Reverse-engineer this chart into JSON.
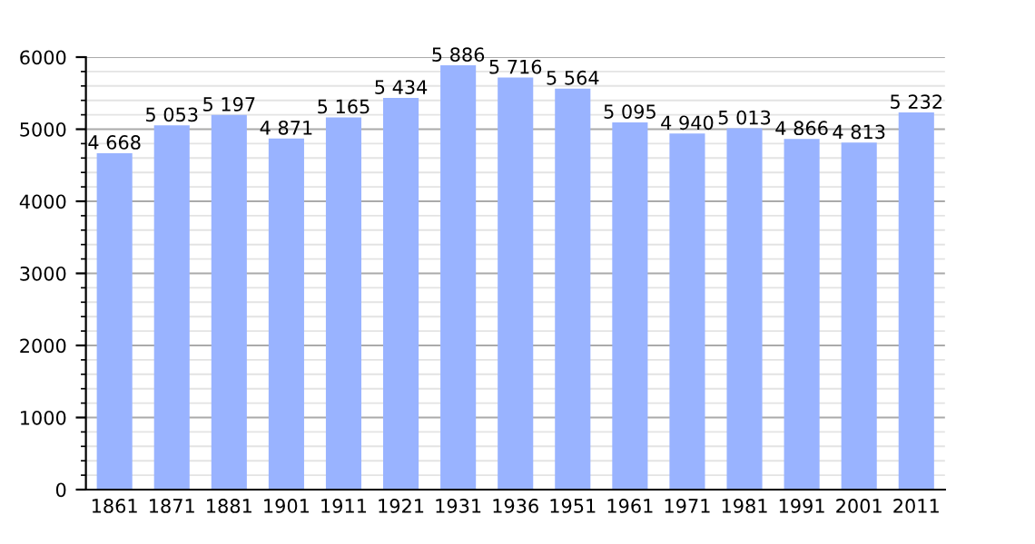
{
  "chart_data": {
    "type": "bar",
    "categories": [
      "1861",
      "1871",
      "1881",
      "1901",
      "1911",
      "1921",
      "1931",
      "1936",
      "1951",
      "1961",
      "1971",
      "1981",
      "1991",
      "2001",
      "2011"
    ],
    "values": [
      4668,
      5053,
      5197,
      4871,
      5165,
      5434,
      5886,
      5716,
      5564,
      5095,
      4940,
      5013,
      4866,
      4813,
      5232
    ],
    "value_labels": [
      "4 668",
      "5 053",
      "5 197",
      "4 871",
      "5 165",
      "5 434",
      "5 886",
      "5 716",
      "5 564",
      "5 095",
      "4 940",
      "5 013",
      "4 866",
      "4 813",
      "5 232"
    ],
    "color": "#99b3ff",
    "ylim": [
      0,
      6000
    ],
    "yticks": [
      0,
      1000,
      2000,
      3000,
      4000,
      5000,
      6000
    ],
    "grid": "y",
    "legend": false
  }
}
